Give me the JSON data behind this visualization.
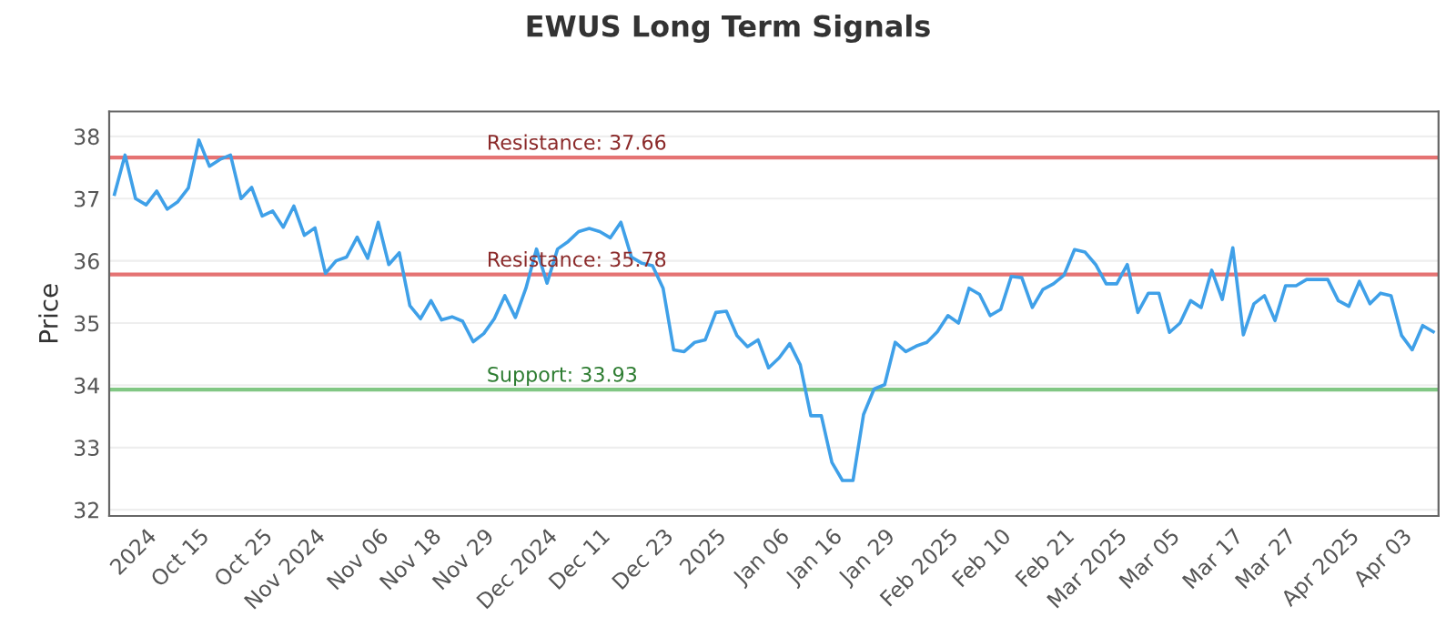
{
  "chart_data": {
    "type": "line",
    "title": "EWUS Long Term Signals",
    "ylabel": "Price",
    "categories": [
      null,
      null,
      null,
      "2024",
      null,
      null,
      null,
      null,
      "Oct 15",
      null,
      null,
      null,
      null,
      null,
      "Oct 25",
      null,
      null,
      null,
      null,
      "Nov 2024",
      null,
      null,
      null,
      null,
      null,
      "Nov 06",
      null,
      null,
      null,
      null,
      "Nov 18",
      null,
      null,
      null,
      null,
      "Nov 29",
      null,
      null,
      null,
      null,
      null,
      "Dec 2024",
      null,
      null,
      null,
      null,
      "Dec 11",
      null,
      null,
      null,
      null,
      null,
      "Dec 23",
      null,
      null,
      null,
      null,
      "2025",
      null,
      null,
      null,
      null,
      null,
      "Jan 06",
      null,
      null,
      null,
      null,
      "Jan 16",
      null,
      null,
      null,
      null,
      "Jan 29",
      null,
      null,
      null,
      null,
      null,
      "Feb 2025",
      null,
      null,
      null,
      null,
      "Feb 10",
      null,
      null,
      null,
      null,
      null,
      "Feb 21",
      null,
      null,
      null,
      null,
      "Mar 2025",
      null,
      null,
      null,
      null,
      "Mar 05",
      null,
      null,
      null,
      null,
      null,
      "Mar 17",
      null,
      null,
      null,
      null,
      "Mar 27",
      null,
      null,
      null,
      null,
      null,
      "Apr 2025",
      null,
      null,
      null,
      null,
      "Apr 03",
      null,
      null,
      null
    ],
    "series": [
      {
        "color": "#3fa0e8",
        "values": [
          37.07,
          37.7,
          37.0,
          36.9,
          37.12,
          36.83,
          36.95,
          37.17,
          37.94,
          37.52,
          37.63,
          37.7,
          37.0,
          37.18,
          36.72,
          36.8,
          36.54,
          36.88,
          36.41,
          36.53,
          35.8,
          36.0,
          36.06,
          36.38,
          36.04,
          36.62,
          35.94,
          36.13,
          35.28,
          35.07,
          35.36,
          35.05,
          35.1,
          35.03,
          34.7,
          34.83,
          35.07,
          35.44,
          35.09,
          35.56,
          36.19,
          35.64,
          36.19,
          36.31,
          36.47,
          36.52,
          36.47,
          36.37,
          36.62,
          36.06,
          35.96,
          35.92,
          35.56,
          34.57,
          34.54,
          34.69,
          34.73,
          35.17,
          35.19,
          34.8,
          34.62,
          34.73,
          34.28,
          34.44,
          34.67,
          34.33,
          33.51,
          33.51,
          32.76,
          32.47,
          32.47,
          33.53,
          33.94,
          34.01,
          34.69,
          34.54,
          34.63,
          34.69,
          34.86,
          35.12,
          35.0,
          35.56,
          35.46,
          35.12,
          35.22,
          35.75,
          35.73,
          35.25,
          35.54,
          35.63,
          35.77,
          36.18,
          36.14,
          35.94,
          35.63,
          35.63,
          35.94,
          35.17,
          35.48,
          35.48,
          34.85,
          35.0,
          35.36,
          35.25,
          35.85,
          35.38,
          36.21,
          34.81,
          35.31,
          35.44,
          35.04,
          35.6,
          35.6,
          35.7,
          35.7,
          35.7,
          35.36,
          35.27,
          35.67,
          35.31,
          35.48,
          35.44,
          34.8,
          34.57,
          34.96,
          34.86
        ]
      }
    ],
    "ylim": [
      31.9,
      38.4
    ],
    "yticks": [
      32,
      33,
      34,
      35,
      36,
      37,
      38
    ],
    "grid": "y",
    "line_style": "solid",
    "marker": "none",
    "ref_lines": [
      {
        "axis": "y",
        "value": 37.66,
        "label": "Resistance: 37.66",
        "color": "#e57373"
      },
      {
        "axis": "y",
        "value": 35.78,
        "label": "Resistance: 35.78",
        "color": "#e57373"
      },
      {
        "axis": "y",
        "value": 33.93,
        "label": "Support: 33.93",
        "color": "#81c784"
      }
    ]
  }
}
